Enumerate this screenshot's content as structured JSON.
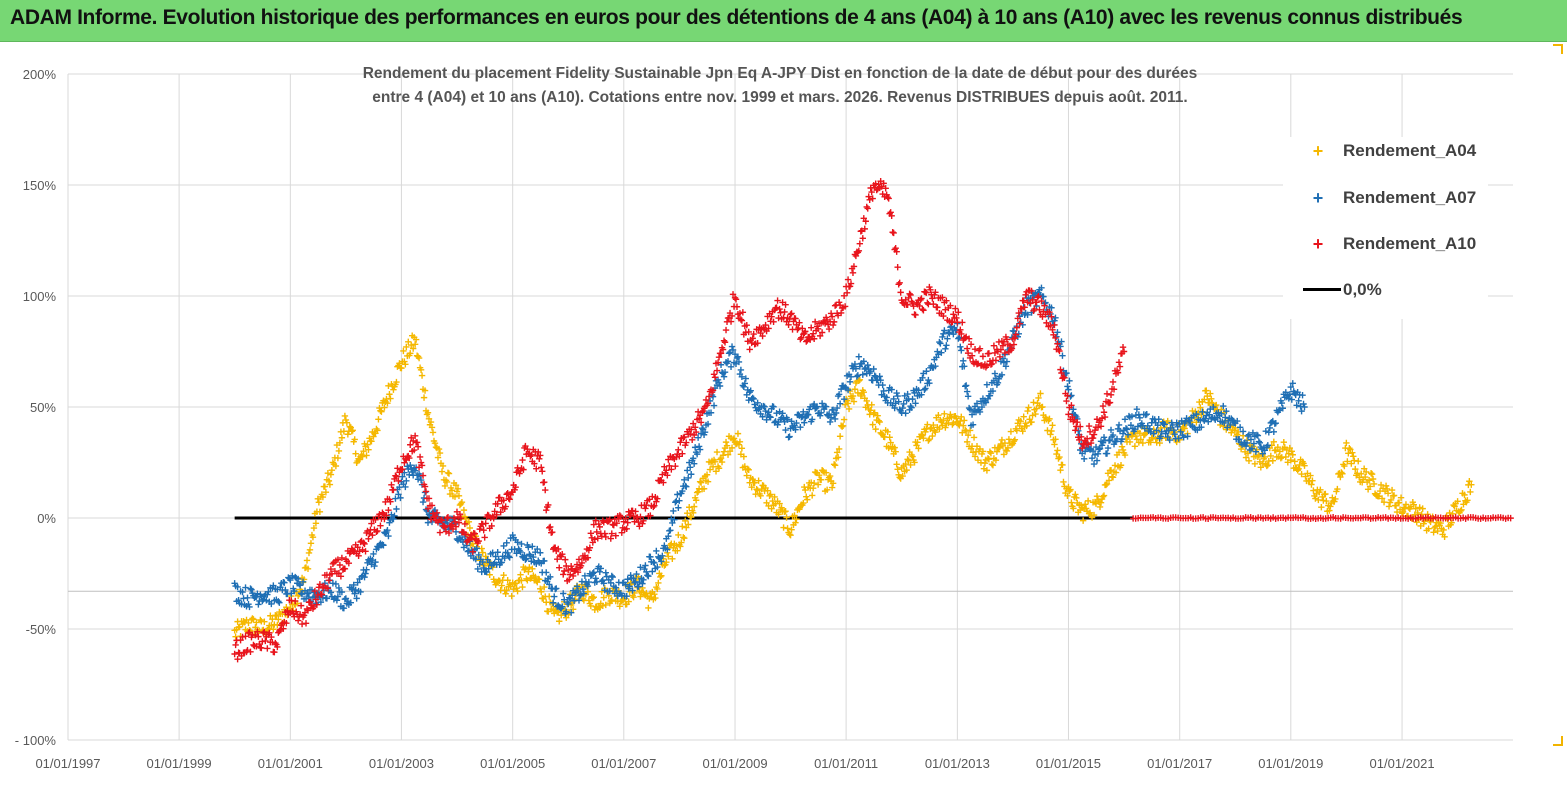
{
  "banner": {
    "title": "ADAM Informe. Evolution historique des performances en euros pour des détentions de 4 ans (A04) à 10 ans (A10) avec les revenus connus distribués",
    "background": "#77d774"
  },
  "chart_data": {
    "type": "scatter",
    "title_line1": "Rendement du placement Fidelity Sustainable Jpn Eq A-JPY Dist en  fonction de la date de début pour des durées",
    "title_line2": "entre 4 (A04) et 10 ans (A10).  Cotations entre nov. 1999 et mars. 2026.  Revenus DISTRIBUES depuis août. 2011.",
    "xlabel": "",
    "ylabel": "",
    "x_ticks": [
      "01/01/1997",
      "01/01/1999",
      "01/01/2001",
      "01/01/2003",
      "01/01/2005",
      "01/01/2007",
      "01/01/2009",
      "01/01/2011",
      "01/01/2013",
      "01/01/2015",
      "01/01/2017",
      "01/01/2019",
      "01/01/2021"
    ],
    "x_range": [
      "1997-01-01",
      "2022-12-31"
    ],
    "y_ticks": [
      "200%",
      "150%",
      "100%",
      "50%",
      "0%",
      "-50%",
      "- 100%"
    ],
    "y_range": [
      -100,
      200
    ],
    "grid": "vertical and horizontal gridlines",
    "legend_position": "top-right",
    "series": [
      {
        "name": "Rendement_A04",
        "color": "#f5b800",
        "marker": "+",
        "points": [
          [
            "2000-01-01",
            -52
          ],
          [
            "2000-04-01",
            -48
          ],
          [
            "2000-07-01",
            -50
          ],
          [
            "2000-10-01",
            -47
          ],
          [
            "2001-01-01",
            -40
          ],
          [
            "2001-04-01",
            -28
          ],
          [
            "2001-07-01",
            5
          ],
          [
            "2001-10-01",
            20
          ],
          [
            "2002-01-01",
            45
          ],
          [
            "2002-04-01",
            25
          ],
          [
            "2002-07-01",
            38
          ],
          [
            "2002-10-01",
            55
          ],
          [
            "2003-01-01",
            70
          ],
          [
            "2003-04-01",
            80
          ],
          [
            "2003-07-01",
            45
          ],
          [
            "2003-10-01",
            20
          ],
          [
            "2004-01-01",
            10
          ],
          [
            "2004-04-01",
            -8
          ],
          [
            "2004-07-01",
            -20
          ],
          [
            "2004-10-01",
            -28
          ],
          [
            "2005-01-01",
            -32
          ],
          [
            "2005-04-01",
            -25
          ],
          [
            "2005-07-01",
            -30
          ],
          [
            "2005-10-01",
            -45
          ],
          [
            "2006-01-01",
            -40
          ],
          [
            "2006-04-01",
            -32
          ],
          [
            "2006-07-01",
            -38
          ],
          [
            "2006-10-01",
            -34
          ],
          [
            "2007-01-01",
            -36
          ],
          [
            "2007-04-01",
            -30
          ],
          [
            "2007-07-01",
            -38
          ],
          [
            "2007-10-01",
            -20
          ],
          [
            "2008-01-01",
            -10
          ],
          [
            "2008-04-01",
            5
          ],
          [
            "2008-07-01",
            20
          ],
          [
            "2008-10-01",
            28
          ],
          [
            "2009-01-01",
            38
          ],
          [
            "2009-04-01",
            18
          ],
          [
            "2009-07-01",
            12
          ],
          [
            "2009-10-01",
            5
          ],
          [
            "2010-01-01",
            -5
          ],
          [
            "2010-04-01",
            10
          ],
          [
            "2010-07-01",
            18
          ],
          [
            "2010-10-01",
            15
          ],
          [
            "2011-01-01",
            50
          ],
          [
            "2011-04-01",
            60
          ],
          [
            "2011-07-01",
            45
          ],
          [
            "2011-10-01",
            35
          ],
          [
            "2012-01-01",
            20
          ],
          [
            "2012-04-01",
            30
          ],
          [
            "2012-07-01",
            40
          ],
          [
            "2012-10-01",
            45
          ],
          [
            "2013-01-01",
            45
          ],
          [
            "2013-04-01",
            35
          ],
          [
            "2013-07-01",
            25
          ],
          [
            "2013-10-01",
            30
          ],
          [
            "2014-01-01",
            38
          ],
          [
            "2014-04-01",
            45
          ],
          [
            "2014-07-01",
            52
          ],
          [
            "2014-10-01",
            35
          ],
          [
            "2015-01-01",
            10
          ],
          [
            "2015-04-01",
            3
          ],
          [
            "2015-07-01",
            5
          ],
          [
            "2015-10-01",
            20
          ],
          [
            "2016-01-01",
            30
          ],
          [
            "2016-04-01",
            38
          ],
          [
            "2016-07-01",
            35
          ],
          [
            "2016-10-01",
            40
          ],
          [
            "2017-01-01",
            38
          ],
          [
            "2017-04-01",
            45
          ],
          [
            "2017-07-01",
            55
          ],
          [
            "2017-10-01",
            45
          ],
          [
            "2018-01-01",
            38
          ],
          [
            "2018-04-01",
            30
          ],
          [
            "2018-07-01",
            25
          ],
          [
            "2018-10-01",
            32
          ],
          [
            "2019-01-01",
            28
          ],
          [
            "2019-04-01",
            20
          ],
          [
            "2019-07-01",
            10
          ],
          [
            "2019-10-01",
            5
          ],
          [
            "2020-01-01",
            30
          ],
          [
            "2020-04-01",
            20
          ],
          [
            "2020-07-01",
            15
          ],
          [
            "2020-10-01",
            10
          ],
          [
            "2021-01-01",
            5
          ],
          [
            "2021-04-01",
            3
          ],
          [
            "2021-07-01",
            -3
          ],
          [
            "2021-10-01",
            -5
          ],
          [
            "2022-01-01",
            5
          ],
          [
            "2022-04-01",
            15
          ]
        ]
      },
      {
        "name": "Rendement_A07",
        "color": "#1f6fb4",
        "marker": "+",
        "points": [
          [
            "2000-01-01",
            -33
          ],
          [
            "2000-04-01",
            -36
          ],
          [
            "2000-07-01",
            -34
          ],
          [
            "2000-10-01",
            -35
          ],
          [
            "2001-01-01",
            -30
          ],
          [
            "2001-04-01",
            -33
          ],
          [
            "2001-07-01",
            -35
          ],
          [
            "2001-10-01",
            -32
          ],
          [
            "2002-01-01",
            -38
          ],
          [
            "2002-04-01",
            -30
          ],
          [
            "2002-07-01",
            -18
          ],
          [
            "2002-10-01",
            -8
          ],
          [
            "2003-01-01",
            15
          ],
          [
            "2003-04-01",
            25
          ],
          [
            "2003-07-01",
            0
          ],
          [
            "2003-10-01",
            -2
          ],
          [
            "2004-01-01",
            -5
          ],
          [
            "2004-04-01",
            -15
          ],
          [
            "2004-07-01",
            -22
          ],
          [
            "2004-10-01",
            -18
          ],
          [
            "2005-01-01",
            -12
          ],
          [
            "2005-04-01",
            -15
          ],
          [
            "2005-07-01",
            -18
          ],
          [
            "2005-10-01",
            -35
          ],
          [
            "2006-01-01",
            -40
          ],
          [
            "2006-04-01",
            -32
          ],
          [
            "2006-07-01",
            -25
          ],
          [
            "2006-10-01",
            -30
          ],
          [
            "2007-01-01",
            -32
          ],
          [
            "2007-04-01",
            -28
          ],
          [
            "2007-07-01",
            -20
          ],
          [
            "2007-10-01",
            -15
          ],
          [
            "2008-01-01",
            10
          ],
          [
            "2008-04-01",
            25
          ],
          [
            "2008-07-01",
            45
          ],
          [
            "2008-10-01",
            65
          ],
          [
            "2009-01-01",
            75
          ],
          [
            "2009-04-01",
            55
          ],
          [
            "2009-07-01",
            50
          ],
          [
            "2009-10-01",
            45
          ],
          [
            "2010-01-01",
            40
          ],
          [
            "2010-04-01",
            45
          ],
          [
            "2010-07-01",
            50
          ],
          [
            "2010-10-01",
            45
          ],
          [
            "2011-01-01",
            60
          ],
          [
            "2011-04-01",
            70
          ],
          [
            "2011-07-01",
            65
          ],
          [
            "2011-10-01",
            55
          ],
          [
            "2012-01-01",
            50
          ],
          [
            "2012-04-01",
            55
          ],
          [
            "2012-07-01",
            65
          ],
          [
            "2012-10-01",
            80
          ],
          [
            "2013-01-01",
            85
          ],
          [
            "2013-04-01",
            45
          ],
          [
            "2013-07-01",
            55
          ],
          [
            "2013-10-01",
            65
          ],
          [
            "2014-01-01",
            80
          ],
          [
            "2014-04-01",
            95
          ],
          [
            "2014-07-01",
            100
          ],
          [
            "2014-10-01",
            90
          ],
          [
            "2015-01-01",
            60
          ],
          [
            "2015-04-01",
            30
          ],
          [
            "2015-07-01",
            28
          ],
          [
            "2015-10-01",
            35
          ],
          [
            "2016-01-01",
            40
          ],
          [
            "2016-04-01",
            45
          ],
          [
            "2016-07-01",
            42
          ],
          [
            "2016-10-01",
            38
          ],
          [
            "2017-01-01",
            40
          ],
          [
            "2017-04-01",
            42
          ],
          [
            "2017-07-01",
            45
          ],
          [
            "2017-10-01",
            48
          ],
          [
            "2018-01-01",
            40
          ],
          [
            "2018-04-01",
            35
          ],
          [
            "2018-07-01",
            32
          ],
          [
            "2018-10-01",
            45
          ],
          [
            "2019-01-01",
            58
          ],
          [
            "2019-04-01",
            50
          ]
        ]
      },
      {
        "name": "Rendement_A10",
        "color": "#e8141c",
        "marker": "+",
        "points": [
          [
            "2000-01-01",
            -60
          ],
          [
            "2000-04-01",
            -56
          ],
          [
            "2000-07-01",
            -55
          ],
          [
            "2000-10-01",
            -57
          ],
          [
            "2001-01-01",
            -40
          ],
          [
            "2001-04-01",
            -45
          ],
          [
            "2001-07-01",
            -35
          ],
          [
            "2001-10-01",
            -25
          ],
          [
            "2002-01-01",
            -20
          ],
          [
            "2002-04-01",
            -15
          ],
          [
            "2002-07-01",
            -5
          ],
          [
            "2002-10-01",
            5
          ],
          [
            "2003-01-01",
            25
          ],
          [
            "2003-04-01",
            35
          ],
          [
            "2003-07-01",
            5
          ],
          [
            "2003-10-01",
            -5
          ],
          [
            "2004-01-01",
            0
          ],
          [
            "2004-04-01",
            -12
          ],
          [
            "2004-07-01",
            -5
          ],
          [
            "2004-10-01",
            5
          ],
          [
            "2005-01-01",
            12
          ],
          [
            "2005-04-01",
            30
          ],
          [
            "2005-07-01",
            25
          ],
          [
            "2005-10-01",
            -15
          ],
          [
            "2006-01-01",
            -25
          ],
          [
            "2006-04-01",
            -20
          ],
          [
            "2006-07-01",
            -5
          ],
          [
            "2006-10-01",
            -5
          ],
          [
            "2007-01-01",
            -2
          ],
          [
            "2007-04-01",
            0
          ],
          [
            "2007-07-01",
            5
          ],
          [
            "2007-10-01",
            20
          ],
          [
            "2008-01-01",
            30
          ],
          [
            "2008-04-01",
            40
          ],
          [
            "2008-07-01",
            50
          ],
          [
            "2008-10-01",
            75
          ],
          [
            "2009-01-01",
            100
          ],
          [
            "2009-04-01",
            80
          ],
          [
            "2009-07-01",
            85
          ],
          [
            "2009-10-01",
            95
          ],
          [
            "2010-01-01",
            90
          ],
          [
            "2010-04-01",
            80
          ],
          [
            "2010-07-01",
            85
          ],
          [
            "2010-10-01",
            90
          ],
          [
            "2011-01-01",
            100
          ],
          [
            "2011-04-01",
            125
          ],
          [
            "2011-07-01",
            150
          ],
          [
            "2011-10-01",
            145
          ],
          [
            "2012-01-01",
            100
          ],
          [
            "2012-04-01",
            95
          ],
          [
            "2012-07-01",
            100
          ],
          [
            "2012-10-01",
            95
          ],
          [
            "2013-01-01",
            90
          ],
          [
            "2013-04-01",
            75
          ],
          [
            "2013-07-01",
            70
          ],
          [
            "2013-10-01",
            75
          ],
          [
            "2014-01-01",
            80
          ],
          [
            "2014-04-01",
            100
          ],
          [
            "2014-07-01",
            95
          ],
          [
            "2014-10-01",
            85
          ],
          [
            "2015-01-01",
            50
          ],
          [
            "2015-04-01",
            35
          ],
          [
            "2015-07-01",
            40
          ],
          [
            "2015-10-01",
            55
          ],
          [
            "2016-01-01",
            75
          ]
        ]
      }
    ],
    "zero_line": {
      "name": "0,0%",
      "color": "#000000",
      "from": "2000-01-01",
      "to": "2022-12-31",
      "value": 0
    },
    "red_zero_band": {
      "from": "2016-03-01",
      "to": "2022-12-31"
    },
    "secondary_hline_value": -33
  },
  "legend": {
    "items": [
      {
        "label": "Rendement_A04",
        "color": "#f5b800",
        "symbol": "+"
      },
      {
        "label": "Rendement_A07",
        "color": "#1f6fb4",
        "symbol": "+"
      },
      {
        "label": "Rendement_A10",
        "color": "#e8141c",
        "symbol": "+"
      },
      {
        "label": "0,0%",
        "color": "#000000",
        "symbol": "line"
      }
    ]
  }
}
